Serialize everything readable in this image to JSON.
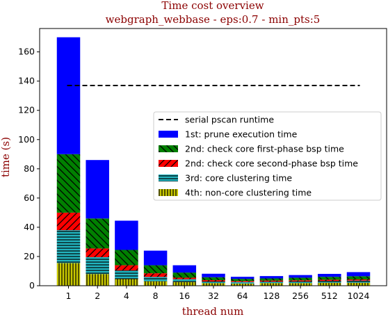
{
  "chart_data": {
    "type": "bar",
    "stacked": true,
    "title": "Time cost overview",
    "subtitle": "webgraph_webbase - eps:0.7 - min_pts:5",
    "xlabel": "thread num",
    "ylabel": "time (s)",
    "title_color": "#8b0000",
    "ylim": [
      0,
      176
    ],
    "yticks": [
      0,
      20,
      40,
      60,
      80,
      100,
      120,
      140,
      160
    ],
    "categories": [
      "1",
      "2",
      "4",
      "8",
      "16",
      "32",
      "64",
      "128",
      "256",
      "512",
      "1024"
    ],
    "series": [
      {
        "name": "4th: non-core clustering time",
        "color": "#c8c800",
        "hatch": "vertical",
        "values": [
          15.5,
          8.0,
          4.5,
          3.0,
          2.5,
          1.8,
          1.5,
          1.8,
          1.8,
          2.0,
          2.0
        ]
      },
      {
        "name": "3rd: core clustering time",
        "color": "#22b5c0",
        "hatch": "horizontal",
        "values": [
          22.5,
          11.5,
          6.0,
          3.0,
          2.0,
          1.2,
          1.0,
          1.0,
          1.2,
          1.3,
          1.5
        ]
      },
      {
        "name": "2nd: check core second-phase bsp time",
        "color": "#ff0000",
        "hatch": "diagonal",
        "values": [
          12.0,
          6.0,
          3.5,
          2.5,
          1.0,
          0.8,
          0.7,
          0.7,
          0.7,
          0.8,
          0.8
        ]
      },
      {
        "name": "2nd: check core first-phase bsp time",
        "color": "#008000",
        "hatch": "diagonal-back",
        "values": [
          40.0,
          20.5,
          10.5,
          5.5,
          3.5,
          2.0,
          1.5,
          1.5,
          1.8,
          2.0,
          2.2
        ]
      },
      {
        "name": "1st: prune execution time",
        "color": "#0000ff",
        "hatch": "none",
        "values": [
          80.0,
          40.0,
          20.0,
          10.0,
          5.0,
          2.4,
          1.4,
          1.6,
          1.8,
          2.0,
          2.8
        ]
      }
    ],
    "reference_line": {
      "name": "serial pscan runtime",
      "value": 137,
      "style": "dashed",
      "color": "#000000"
    },
    "legend": {
      "placement": "center-right",
      "order": [
        "serial pscan runtime",
        "1st: prune execution time",
        "2nd: check core first-phase bsp time",
        "2nd: check core second-phase bsp time",
        "3rd: core clustering time",
        "4th: non-core clustering time"
      ]
    }
  }
}
